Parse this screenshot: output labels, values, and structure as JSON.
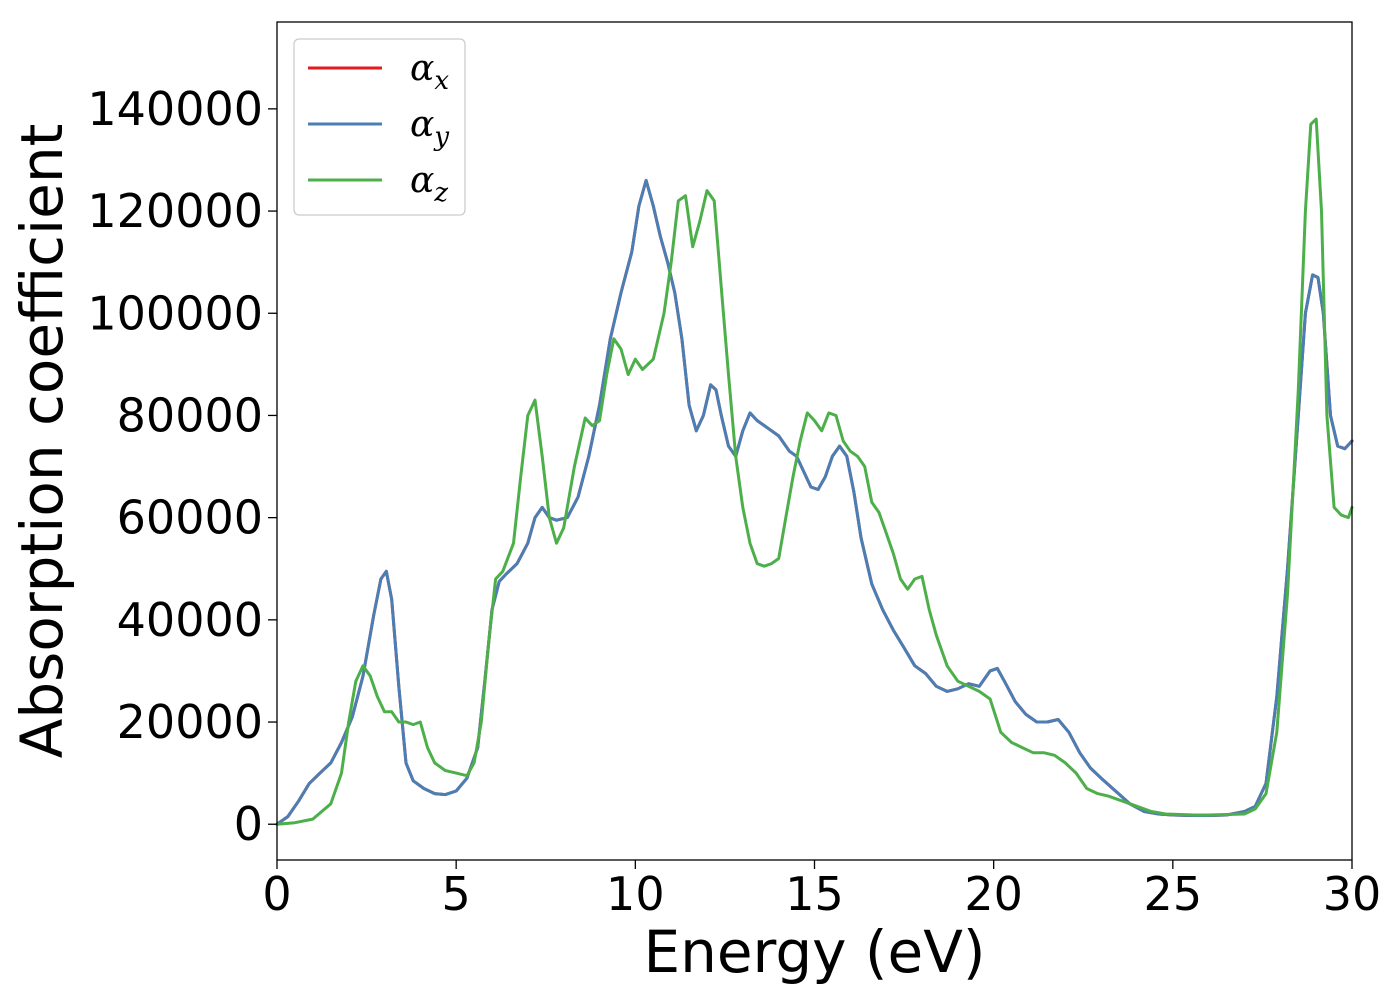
{
  "chart_data": {
    "type": "line",
    "xlabel": "Energy (eV)",
    "ylabel": "Absorption coefficient",
    "xlim": [
      0,
      30
    ],
    "ylim": [
      -7000,
      157000
    ],
    "xticks": [
      0,
      5,
      10,
      15,
      20,
      25,
      30
    ],
    "yticks": [
      0,
      20000,
      40000,
      60000,
      80000,
      100000,
      120000,
      140000
    ],
    "xtick_labels": [
      "0",
      "5",
      "10",
      "15",
      "20",
      "25",
      "30"
    ],
    "ytick_labels": [
      "0",
      "20000",
      "40000",
      "60000",
      "80000",
      "100000",
      "120000",
      "140000"
    ],
    "grid": false,
    "legend_position": "top-left",
    "series": [
      {
        "name": "α_x",
        "label_base": "α",
        "label_sub": "x",
        "color": "#e41a1c",
        "x": [
          0,
          0.3,
          0.6,
          0.9,
          1.2,
          1.5,
          1.8,
          2.1,
          2.4,
          2.7,
          2.9,
          3.05,
          3.2,
          3.4,
          3.6,
          3.8,
          4.1,
          4.4,
          4.7,
          5.0,
          5.3,
          5.6,
          5.8,
          6.0,
          6.2,
          6.4,
          6.7,
          7.0,
          7.2,
          7.4,
          7.6,
          7.8,
          8.1,
          8.4,
          8.7,
          9.0,
          9.3,
          9.6,
          9.9,
          10.1,
          10.3,
          10.5,
          10.7,
          10.9,
          11.1,
          11.3,
          11.5,
          11.7,
          11.9,
          12.1,
          12.25,
          12.4,
          12.6,
          12.8,
          13.0,
          13.2,
          13.4,
          13.7,
          14.0,
          14.3,
          14.5,
          14.7,
          14.9,
          15.1,
          15.3,
          15.5,
          15.7,
          15.9,
          16.1,
          16.3,
          16.6,
          16.9,
          17.2,
          17.5,
          17.8,
          18.1,
          18.4,
          18.7,
          19.0,
          19.3,
          19.6,
          19.9,
          20.1,
          20.3,
          20.6,
          20.9,
          21.2,
          21.5,
          21.8,
          22.1,
          22.4,
          22.7,
          23.0,
          23.4,
          23.8,
          24.2,
          24.6,
          25.0,
          25.5,
          26.0,
          26.5,
          27.0,
          27.3,
          27.6,
          27.9,
          28.2,
          28.5,
          28.7,
          28.9,
          29.05,
          29.2,
          29.4,
          29.6,
          29.8,
          30.0
        ],
        "y": [
          0,
          1500,
          4500,
          8000,
          10000,
          12000,
          16000,
          21000,
          29000,
          41000,
          48000,
          49500,
          44000,
          27000,
          12000,
          8500,
          7000,
          6000,
          5800,
          6500,
          9000,
          15000,
          28000,
          42000,
          47500,
          49000,
          51000,
          55000,
          60000,
          62000,
          60000,
          59500,
          60000,
          64000,
          72000,
          82000,
          95000,
          104000,
          112000,
          121000,
          126000,
          121000,
          115000,
          110000,
          104000,
          95000,
          82000,
          77000,
          80000,
          86000,
          85000,
          80000,
          74000,
          72000,
          77000,
          80500,
          79000,
          77500,
          76000,
          73000,
          72000,
          69000,
          66000,
          65500,
          68000,
          72000,
          74000,
          72000,
          65000,
          56000,
          47000,
          42000,
          38000,
          34500,
          31000,
          29500,
          27000,
          26000,
          26500,
          27500,
          27000,
          30000,
          30500,
          28000,
          24000,
          21500,
          20000,
          20000,
          20500,
          18000,
          14000,
          11000,
          9000,
          6500,
          4000,
          2500,
          2000,
          1800,
          1700,
          1700,
          1800,
          2500,
          3500,
          8000,
          25000,
          50000,
          80000,
          100000,
          107500,
          107000,
          100000,
          80000,
          74000,
          73500,
          75000
        ]
      },
      {
        "name": "α_y",
        "label_base": "α",
        "label_sub": "y",
        "color": "#4a7fb5",
        "x": [
          0,
          0.3,
          0.6,
          0.9,
          1.2,
          1.5,
          1.8,
          2.1,
          2.4,
          2.7,
          2.9,
          3.05,
          3.2,
          3.4,
          3.6,
          3.8,
          4.1,
          4.4,
          4.7,
          5.0,
          5.3,
          5.6,
          5.8,
          6.0,
          6.2,
          6.4,
          6.7,
          7.0,
          7.2,
          7.4,
          7.6,
          7.8,
          8.1,
          8.4,
          8.7,
          9.0,
          9.3,
          9.6,
          9.9,
          10.1,
          10.3,
          10.5,
          10.7,
          10.9,
          11.1,
          11.3,
          11.5,
          11.7,
          11.9,
          12.1,
          12.25,
          12.4,
          12.6,
          12.8,
          13.0,
          13.2,
          13.4,
          13.7,
          14.0,
          14.3,
          14.5,
          14.7,
          14.9,
          15.1,
          15.3,
          15.5,
          15.7,
          15.9,
          16.1,
          16.3,
          16.6,
          16.9,
          17.2,
          17.5,
          17.8,
          18.1,
          18.4,
          18.7,
          19.0,
          19.3,
          19.6,
          19.9,
          20.1,
          20.3,
          20.6,
          20.9,
          21.2,
          21.5,
          21.8,
          22.1,
          22.4,
          22.7,
          23.0,
          23.4,
          23.8,
          24.2,
          24.6,
          25.0,
          25.5,
          26.0,
          26.5,
          27.0,
          27.3,
          27.6,
          27.9,
          28.2,
          28.5,
          28.7,
          28.9,
          29.05,
          29.2,
          29.4,
          29.6,
          29.8,
          30.0
        ],
        "y": [
          0,
          1500,
          4500,
          8000,
          10000,
          12000,
          16000,
          21000,
          29000,
          41000,
          48000,
          49500,
          44000,
          27000,
          12000,
          8500,
          7000,
          6000,
          5800,
          6500,
          9000,
          15000,
          28000,
          42000,
          47500,
          49000,
          51000,
          55000,
          60000,
          62000,
          60000,
          59500,
          60000,
          64000,
          72000,
          82000,
          95000,
          104000,
          112000,
          121000,
          126000,
          121000,
          115000,
          110000,
          104000,
          95000,
          82000,
          77000,
          80000,
          86000,
          85000,
          80000,
          74000,
          72000,
          77000,
          80500,
          79000,
          77500,
          76000,
          73000,
          72000,
          69000,
          66000,
          65500,
          68000,
          72000,
          74000,
          72000,
          65000,
          56000,
          47000,
          42000,
          38000,
          34500,
          31000,
          29500,
          27000,
          26000,
          26500,
          27500,
          27000,
          30000,
          30500,
          28000,
          24000,
          21500,
          20000,
          20000,
          20500,
          18000,
          14000,
          11000,
          9000,
          6500,
          4000,
          2500,
          2000,
          1800,
          1700,
          1700,
          1800,
          2500,
          3500,
          8000,
          25000,
          50000,
          80000,
          100000,
          107500,
          107000,
          100000,
          80000,
          74000,
          73500,
          75000
        ]
      },
      {
        "name": "α_z",
        "label_base": "α",
        "label_sub": "z",
        "color": "#4daf4a",
        "x": [
          0,
          0.5,
          1.0,
          1.5,
          1.8,
          2.0,
          2.2,
          2.4,
          2.6,
          2.8,
          3.0,
          3.2,
          3.4,
          3.6,
          3.8,
          4.0,
          4.2,
          4.4,
          4.7,
          5.0,
          5.3,
          5.5,
          5.7,
          5.9,
          6.1,
          6.3,
          6.6,
          6.8,
          7.0,
          7.2,
          7.4,
          7.6,
          7.8,
          8.0,
          8.3,
          8.6,
          8.8,
          9.0,
          9.2,
          9.4,
          9.6,
          9.8,
          10.0,
          10.2,
          10.5,
          10.8,
          11.0,
          11.2,
          11.4,
          11.6,
          11.8,
          12.0,
          12.2,
          12.4,
          12.6,
          12.8,
          13.0,
          13.2,
          13.4,
          13.6,
          13.8,
          14.0,
          14.2,
          14.4,
          14.6,
          14.8,
          15.0,
          15.2,
          15.4,
          15.6,
          15.8,
          16.0,
          16.2,
          16.4,
          16.6,
          16.8,
          17.0,
          17.2,
          17.4,
          17.6,
          17.8,
          18.0,
          18.2,
          18.4,
          18.7,
          19.0,
          19.3,
          19.6,
          19.9,
          20.2,
          20.5,
          20.8,
          21.1,
          21.4,
          21.7,
          22.0,
          22.3,
          22.6,
          22.9,
          23.2,
          23.6,
          24.0,
          24.4,
          24.8,
          25.2,
          25.6,
          26.0,
          26.5,
          27.0,
          27.3,
          27.6,
          27.9,
          28.2,
          28.5,
          28.7,
          28.85,
          29.0,
          29.15,
          29.3,
          29.5,
          29.7,
          29.9,
          30.0
        ],
        "y": [
          0,
          300,
          1000,
          4000,
          10000,
          20000,
          28000,
          31000,
          29000,
          25000,
          22000,
          22000,
          20000,
          20000,
          19500,
          20000,
          15000,
          12000,
          10500,
          10000,
          9500,
          12000,
          20000,
          35000,
          48000,
          49500,
          55000,
          68000,
          80000,
          83000,
          72000,
          60000,
          55000,
          58000,
          70000,
          79500,
          78000,
          79000,
          88000,
          95000,
          93000,
          88000,
          91000,
          89000,
          91000,
          100000,
          110000,
          122000,
          123000,
          113000,
          118000,
          124000,
          122000,
          105000,
          88000,
          72000,
          62000,
          55000,
          51000,
          50500,
          51000,
          52000,
          60000,
          68000,
          75000,
          80500,
          79000,
          77000,
          80500,
          80000,
          75000,
          73000,
          72000,
          70000,
          63000,
          61000,
          57000,
          53000,
          48000,
          46000,
          48000,
          48500,
          42000,
          37000,
          31000,
          28000,
          27000,
          26000,
          24500,
          18000,
          16000,
          15000,
          14000,
          14000,
          13500,
          12000,
          10000,
          7000,
          6000,
          5500,
          4500,
          3500,
          2500,
          2000,
          1900,
          1800,
          1800,
          1900,
          2000,
          3000,
          6000,
          18000,
          45000,
          85000,
          120000,
          137000,
          138000,
          120000,
          80000,
          62000,
          60500,
          60000,
          62000
        ]
      }
    ]
  }
}
